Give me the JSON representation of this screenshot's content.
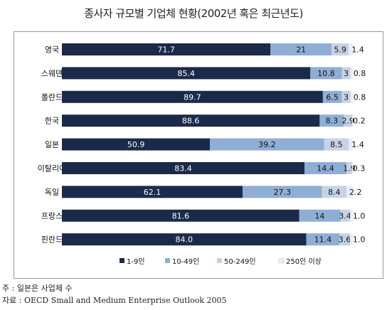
{
  "chart_data": {
    "type": "bar",
    "orientation": "horizontal",
    "stacked": true,
    "percent": true,
    "title": "종사자 규모별 기업체 현황(2002년 혹은 최근년도)",
    "categories": [
      "영국",
      "스웨덴",
      "폴란드",
      "한국",
      "일본",
      "이탈리아",
      "독일",
      "프랑스",
      "핀란드"
    ],
    "series": [
      {
        "name": "1-9인",
        "color": "#1b2a4a",
        "values": [
          71.7,
          85.4,
          89.7,
          88.6,
          50.9,
          83.4,
          62.1,
          81.6,
          84.0
        ],
        "labels": [
          "71.7",
          "85.4",
          "89.7",
          "88.6",
          "50.9",
          "83.4",
          "62.1",
          "81.6",
          "84.0"
        ]
      },
      {
        "name": "10-49인",
        "color": "#8faed6",
        "values": [
          21,
          10.8,
          6.5,
          8.3,
          39.2,
          14.4,
          27.3,
          14,
          11.4
        ],
        "labels": [
          "21",
          "10.8",
          "6.5",
          "8.3",
          "39.2",
          "14.4",
          "27.3",
          "14",
          "11.4"
        ]
      },
      {
        "name": "50-249인",
        "color": "#c6d3e6",
        "values": [
          5.9,
          3,
          3,
          2.9,
          8.5,
          1.9,
          8.4,
          3.4,
          3.6
        ],
        "labels": [
          "5.9",
          "3",
          "3",
          "2.9",
          "8.5",
          "1.9",
          "8.4",
          "3.4",
          "3.6"
        ]
      },
      {
        "name": "250인 이상",
        "color": "#e9eef6",
        "values": [
          1.4,
          0.8,
          0.8,
          0.2,
          1.4,
          0.3,
          2.2,
          1.0,
          1.0
        ],
        "labels": [
          "1.4",
          "0.8",
          "0.8",
          "0.2",
          "1.4",
          "0.3",
          "2.2",
          "1.0",
          "1.0"
        ]
      }
    ],
    "xlim": [
      0,
      100
    ],
    "grid": false,
    "legend_position": "bottom"
  },
  "notes": {
    "note1": "주 : 일본은 사업체 수",
    "note2": "자료 : OECD Small and Medium Enterprise Outlook 2005"
  }
}
